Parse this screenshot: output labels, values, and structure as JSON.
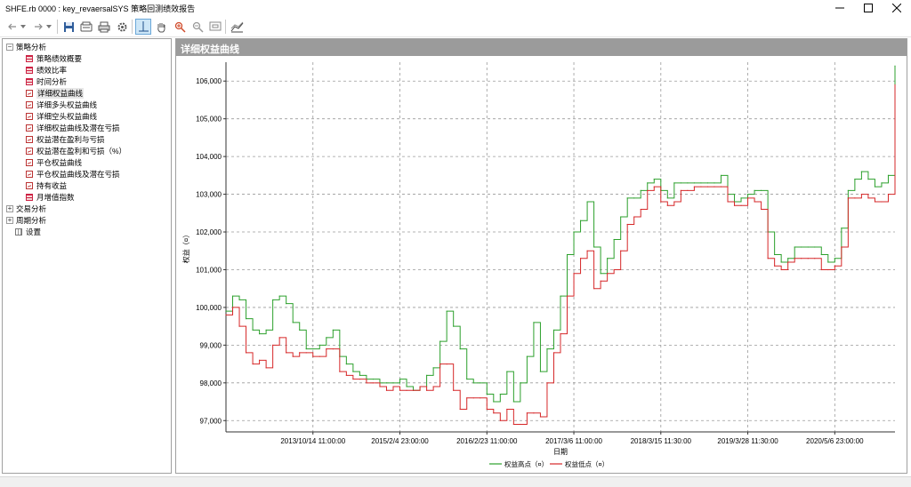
{
  "window": {
    "title": "SHFE.rb 0000 : key_revaersalSYS 策略回测绩效报告"
  },
  "toolbar": {
    "buttons": [
      {
        "name": "back-icon",
        "glyph": "⇠"
      },
      {
        "name": "back-dropdown-icon",
        "glyph": "▾"
      },
      {
        "name": "forward-icon",
        "glyph": "⇢"
      },
      {
        "name": "forward-dropdown-icon",
        "glyph": "▾"
      },
      {
        "name": "save-icon"
      },
      {
        "name": "copy-icon"
      },
      {
        "name": "print-icon"
      },
      {
        "name": "settings-icon"
      },
      {
        "name": "crosshair-icon"
      },
      {
        "name": "hand-pan-icon"
      },
      {
        "name": "zoom-in-icon"
      },
      {
        "name": "zoom-out-icon"
      },
      {
        "name": "zoom-window-icon"
      },
      {
        "name": "chart-style-icon"
      }
    ]
  },
  "tree": {
    "groups": [
      {
        "label": "策略分析",
        "expanded": true,
        "children": [
          {
            "label": "策略绩效概要",
            "icon": "table"
          },
          {
            "label": "绩效比率",
            "icon": "table"
          },
          {
            "label": "时间分析",
            "icon": "table"
          },
          {
            "label": "详细权益曲线",
            "icon": "chart",
            "selected": true
          },
          {
            "label": "详细多头权益曲线",
            "icon": "chart"
          },
          {
            "label": "详细空头权益曲线",
            "icon": "chart"
          },
          {
            "label": "详细权益曲线及潜在亏损",
            "icon": "chart"
          },
          {
            "label": "权益潜在盈利与亏损",
            "icon": "chart"
          },
          {
            "label": "权益潜在盈利和亏损（%）",
            "icon": "chart"
          },
          {
            "label": "平仓权益曲线",
            "icon": "chart"
          },
          {
            "label": "平仓权益曲线及潜在亏损",
            "icon": "chart"
          },
          {
            "label": "持有收益",
            "icon": "chart"
          },
          {
            "label": "月增值指数",
            "icon": "table"
          }
        ]
      },
      {
        "label": "交易分析",
        "expanded": false,
        "children": []
      },
      {
        "label": "周期分析",
        "expanded": false,
        "children": []
      },
      {
        "label": "设置",
        "icon": "grid",
        "leaf": true
      }
    ]
  },
  "chart_panel": {
    "header": "详细权益曲线"
  },
  "chart_data": {
    "type": "line",
    "ylabel": "权益（¤）",
    "xlabel": "日期",
    "ylim": [
      96700,
      106500
    ],
    "yticks": [
      97000,
      98000,
      99000,
      100000,
      101000,
      102000,
      103000,
      104000,
      105000,
      106000
    ],
    "ytick_labels": [
      "97,000",
      "98,000",
      "99,000",
      "100,000",
      "101,000",
      "102,000",
      "103,000",
      "104,000",
      "105,000",
      "106,000"
    ],
    "xlim": [
      0,
      100
    ],
    "xticks": [
      13,
      26,
      39,
      52,
      65,
      78,
      91
    ],
    "xtick_labels": [
      "2013/10/14 11:00:00",
      "2015/2/4 23:00:00",
      "2016/2/23 11:00:00",
      "2017/3/6 11:00:00",
      "2018/3/15 11:30:00",
      "2019/3/28 11:30:00",
      "2020/5/6 23:00:00"
    ],
    "grid": true,
    "legend_position": "bottom",
    "series": [
      {
        "name": "权益高点（¤）",
        "color": "#2ca02c",
        "x": [
          0,
          1,
          2,
          3,
          4,
          5,
          6,
          7,
          8,
          9,
          10,
          11,
          12,
          13,
          14,
          15,
          16,
          17,
          18,
          19,
          20,
          21,
          22,
          23,
          24,
          25,
          26,
          27,
          28,
          29,
          30,
          31,
          32,
          33,
          34,
          35,
          36,
          37,
          38,
          39,
          40,
          41,
          42,
          43,
          44,
          45,
          46,
          47,
          48,
          49,
          50,
          51,
          52,
          53,
          54,
          55,
          56,
          57,
          58,
          59,
          60,
          61,
          62,
          63,
          64,
          65,
          66,
          67,
          68,
          69,
          70,
          71,
          72,
          73,
          74,
          75,
          76,
          77,
          78,
          79,
          80,
          81,
          82,
          83,
          84,
          85,
          86,
          87,
          88,
          89,
          90,
          91,
          92,
          93,
          94,
          95,
          96,
          97,
          98,
          99,
          100
        ],
        "values": [
          99900,
          100300,
          100200,
          99700,
          99400,
          99300,
          99400,
          100200,
          100300,
          100100,
          99600,
          99400,
          98900,
          98900,
          99000,
          99200,
          99400,
          98700,
          98500,
          98300,
          98200,
          98100,
          98100,
          98000,
          98000,
          98000,
          98100,
          97900,
          97800,
          97900,
          98200,
          98400,
          99100,
          99900,
          99500,
          98900,
          98100,
          98000,
          98000,
          97700,
          97500,
          97700,
          98300,
          97500,
          98000,
          98700,
          99600,
          98300,
          98900,
          99400,
          100300,
          101400,
          102000,
          102300,
          102800,
          101600,
          100900,
          101300,
          101800,
          102400,
          102900,
          102900,
          103100,
          103300,
          103400,
          103100,
          102900,
          103300,
          103300,
          103300,
          103300,
          103300,
          103300,
          103300,
          103500,
          103000,
          102800,
          102900,
          103000,
          103100,
          103100,
          102000,
          101400,
          101200,
          101300,
          101600,
          101600,
          101600,
          101600,
          101400,
          101200,
          101300,
          102100,
          103100,
          103400,
          103600,
          103400,
          103200,
          103300,
          103500,
          106400
        ]
      },
      {
        "name": "权益低点（¤）",
        "color": "#d62728",
        "x": [
          0,
          1,
          2,
          3,
          4,
          5,
          6,
          7,
          8,
          9,
          10,
          11,
          12,
          13,
          14,
          15,
          16,
          17,
          18,
          19,
          20,
          21,
          22,
          23,
          24,
          25,
          26,
          27,
          28,
          29,
          30,
          31,
          32,
          33,
          34,
          35,
          36,
          37,
          38,
          39,
          40,
          41,
          42,
          43,
          44,
          45,
          46,
          47,
          48,
          49,
          50,
          51,
          52,
          53,
          54,
          55,
          56,
          57,
          58,
          59,
          60,
          61,
          62,
          63,
          64,
          65,
          66,
          67,
          68,
          69,
          70,
          71,
          72,
          73,
          74,
          75,
          76,
          77,
          78,
          79,
          80,
          81,
          82,
          83,
          84,
          85,
          86,
          87,
          88,
          89,
          90,
          91,
          92,
          93,
          94,
          95,
          96,
          97,
          98,
          99,
          100
        ],
        "values": [
          99800,
          100000,
          99500,
          98800,
          98500,
          98600,
          98400,
          99000,
          99200,
          98800,
          98700,
          98800,
          98800,
          98700,
          98700,
          98900,
          98900,
          98300,
          98200,
          98100,
          98100,
          98000,
          98000,
          97900,
          97800,
          97900,
          97800,
          97800,
          97800,
          97900,
          97800,
          97900,
          98500,
          98500,
          97800,
          97300,
          97600,
          97600,
          97600,
          97300,
          97200,
          97000,
          97300,
          96900,
          96900,
          97200,
          97200,
          97100,
          98000,
          98800,
          99300,
          100300,
          100900,
          101300,
          101500,
          100500,
          100700,
          100900,
          101000,
          101500,
          102200,
          102400,
          102600,
          103100,
          103200,
          102800,
          102700,
          102800,
          103100,
          103100,
          103200,
          103200,
          103200,
          103200,
          103200,
          102800,
          102700,
          102700,
          102900,
          102800,
          102600,
          101300,
          101100,
          101000,
          101200,
          101300,
          101300,
          101300,
          101300,
          101000,
          101000,
          101100,
          101600,
          102900,
          102900,
          103000,
          102900,
          102800,
          102800,
          103000,
          105900
        ]
      }
    ]
  }
}
